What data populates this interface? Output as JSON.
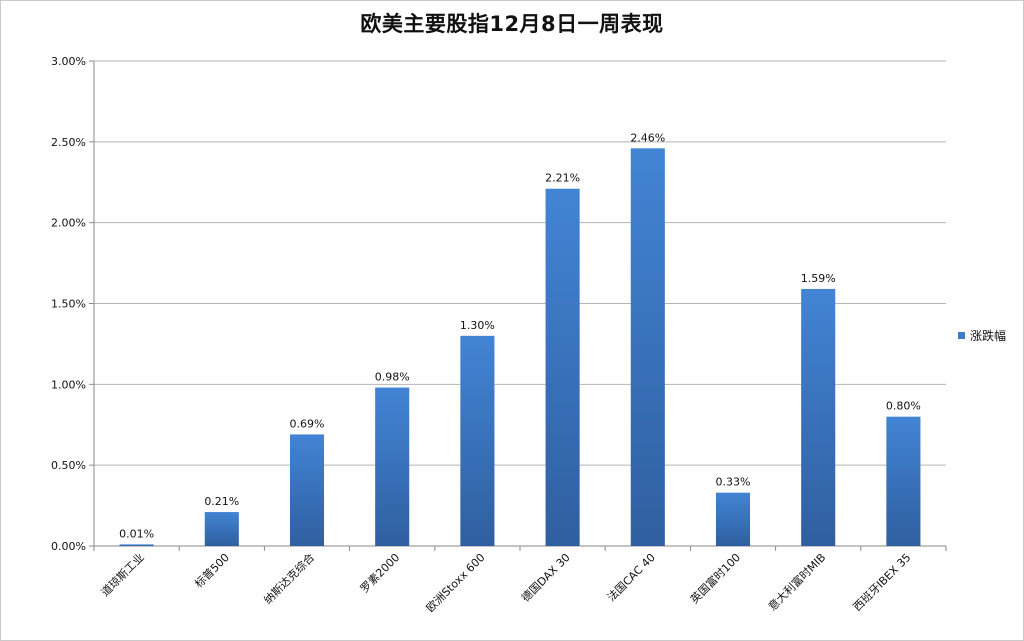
{
  "chart_data": {
    "type": "bar",
    "title": "欧美主要股指12月8日一周表现",
    "categories": [
      "道琼斯工业",
      "标普500",
      "纳斯达克综合",
      "罗素2000",
      "欧洲Stoxx 600",
      "德国DAX 30",
      "法国CAC 40",
      "英国富时100",
      "意大利富时MIB",
      "西班牙IBEX 35"
    ],
    "series": [
      {
        "name": "涨跌幅",
        "values": [
          0.01,
          0.21,
          0.69,
          0.98,
          1.3,
          2.21,
          2.46,
          0.33,
          1.59,
          0.8
        ],
        "labels": [
          "0.01%",
          "0.21%",
          "0.69%",
          "0.98%",
          "1.30%",
          "2.21%",
          "2.46%",
          "0.33%",
          "1.59%",
          "0.80%"
        ],
        "color": "#3d7cc9"
      }
    ],
    "yticks": [
      0,
      0.5,
      1.0,
      1.5,
      2.0,
      2.5,
      3.0
    ],
    "ytick_labels": [
      "0.00%",
      "0.50%",
      "1.00%",
      "1.50%",
      "2.00%",
      "2.50%",
      "3.00%"
    ],
    "ylim": [
      0,
      3.0
    ],
    "xlabel": "",
    "ylabel": "",
    "grid": true,
    "legend_position": "right"
  }
}
